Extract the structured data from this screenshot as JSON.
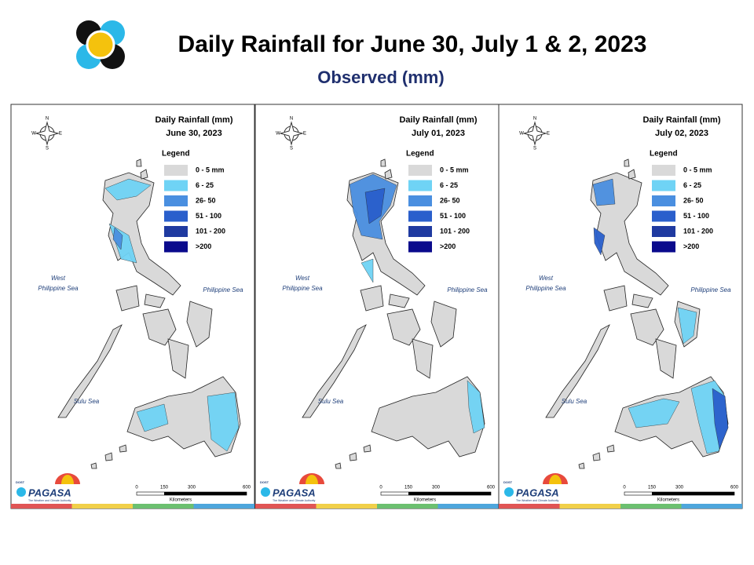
{
  "header": {
    "title": "Daily Rainfall for June 30, July 1 & 2, 2023",
    "subtitle": "Observed (mm)"
  },
  "panel_title": "Daily Rainfall (mm)",
  "legend": {
    "title": "Legend",
    "items": [
      {
        "label": "0 - 5 mm",
        "color": "#d9d9d9"
      },
      {
        "label": "6 - 25",
        "color": "#6fd3f5"
      },
      {
        "label": "26- 50",
        "color": "#4a8fe0"
      },
      {
        "label": "51 - 100",
        "color": "#2a5fcc"
      },
      {
        "label": "101 - 200",
        "color": "#1f3aa0"
      },
      {
        "label": ">200",
        "color": "#0a0a8c"
      }
    ]
  },
  "panels": [
    {
      "date": "June 30, 2023"
    },
    {
      "date": "July 01, 2023"
    },
    {
      "date": "July 02, 2023"
    }
  ],
  "seas": {
    "west": [
      "West",
      "Philippine Sea"
    ],
    "east": "Philippine Sea",
    "sulu": "Sulu Sea"
  },
  "compass": {
    "n": "N",
    "s": "S",
    "e": "E",
    "w": "W"
  },
  "scale": {
    "ticks": [
      0,
      150,
      300,
      600
    ],
    "unit": "Kilometers"
  },
  "logo": {
    "top": "DOST",
    "name": "PAGASA",
    "tagline": "The Weather and Climate Authority"
  }
}
